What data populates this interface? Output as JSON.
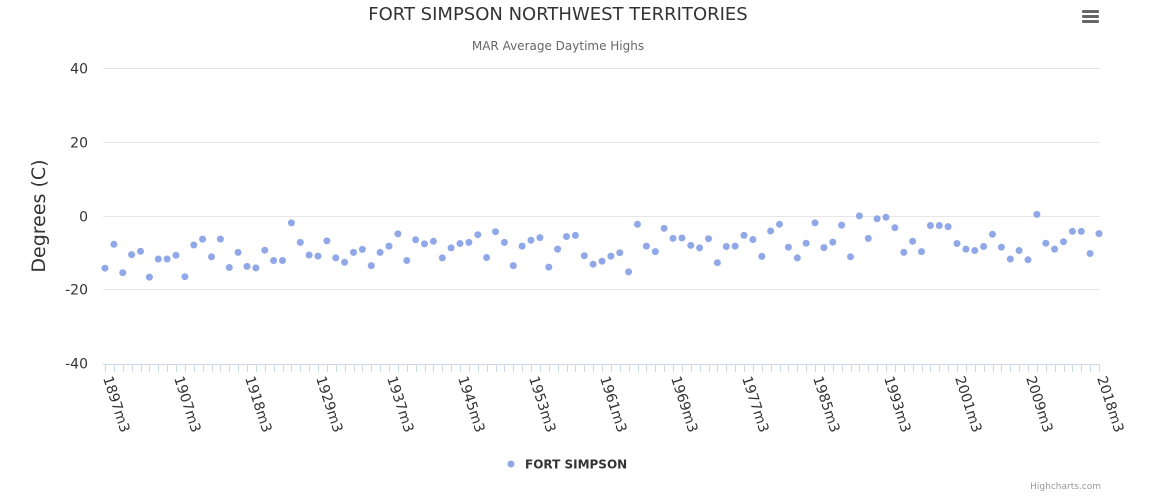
{
  "chart_data": {
    "type": "scatter",
    "title": "FORT SIMPSON NORTHWEST TERRITORIES",
    "subtitle": "MAR Average Daytime Highs",
    "ylabel": "Degrees (C)",
    "xlabel": "",
    "ylim": [
      -40,
      40
    ],
    "yticks": [
      40,
      20,
      0,
      -20,
      -40
    ],
    "xticks": [
      "1897m3",
      "1907m3",
      "1918m3",
      "1929m3",
      "1937m3",
      "1945m3",
      "1953m3",
      "1961m3",
      "1969m3",
      "1977m3",
      "1985m3",
      "1993m3",
      "2001m3",
      "2009m3",
      "2018m3"
    ],
    "xtick_indices": [
      0,
      8,
      16,
      24,
      32,
      40,
      48,
      56,
      64,
      72,
      80,
      88,
      96,
      104,
      112
    ],
    "x_count": 113,
    "grid": true,
    "legend_position": "bottom-center",
    "series": [
      {
        "name": "FORT SIMPSON",
        "color": "#90a8e8",
        "values": [
          -14.3,
          -7.8,
          -15.5,
          -10.6,
          -9.7,
          -16.7,
          -11.8,
          -11.8,
          -10.8,
          -16.6,
          -8.0,
          -6.4,
          -11.2,
          -6.4,
          -14.1,
          -10.0,
          -13.8,
          -14.2,
          -9.4,
          -12.2,
          -12.2,
          -2.0,
          -7.3,
          -10.7,
          -11.0,
          -6.9,
          -11.5,
          -12.7,
          -10.0,
          -9.2,
          -13.6,
          -10.0,
          -8.3,
          -5.0,
          -12.2,
          -6.6,
          -7.7,
          -7.0,
          -11.5,
          -8.8,
          -7.6,
          -7.3,
          -5.2,
          -11.4,
          -4.4,
          -7.3,
          -13.6,
          -8.3,
          -6.7,
          -6.0,
          -14.0,
          -9.1,
          -5.7,
          -5.4,
          -10.9,
          -13.2,
          -12.4,
          -11.0,
          -10.1,
          -15.3,
          -2.4,
          -8.3,
          -9.8,
          -3.5,
          -6.2,
          -6.1,
          -8.1,
          -8.8,
          -6.3,
          -12.8,
          -8.4,
          -8.3,
          -5.4,
          -6.5,
          -11.1,
          -4.2,
          -2.4,
          -8.6,
          -11.5,
          -7.5,
          -2.0,
          -8.7,
          -7.2,
          -2.6,
          -11.2,
          -0.1,
          -6.2,
          -0.9,
          -0.5,
          -3.3,
          -10.0,
          -7.0,
          -9.8,
          -2.7,
          -2.7,
          -3.0,
          -7.6,
          -9.1,
          -9.5,
          -8.4,
          -5.1,
          -8.6,
          -11.8,
          -9.5,
          -12.0,
          0.3,
          -7.5,
          -9.1,
          -7.1,
          -4.3,
          -4.3,
          -10.3,
          -4.9
        ]
      }
    ]
  },
  "menu": {
    "icon": "hamburger-menu-icon"
  },
  "credits": "Highcharts.com"
}
